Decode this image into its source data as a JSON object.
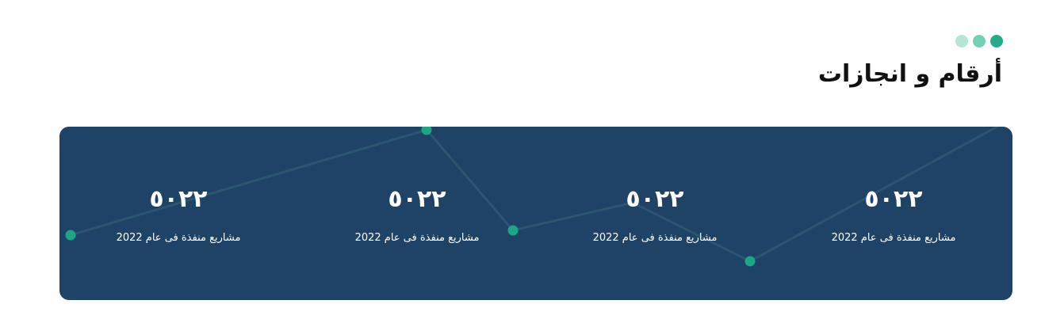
{
  "section": {
    "title": "أرقام و انجازات"
  },
  "colors": {
    "panel_background": "#1f4267",
    "accent": "#1ba684",
    "dot_light": "#b3e6d6",
    "dot_mid": "#74d0b5",
    "dot_dark": "#23ac87",
    "line": "#2b566f"
  },
  "stats": [
    {
      "value": "٥٠٢٢",
      "label": "مشاريع منفذة فى عام 2022"
    },
    {
      "value": "٥٠٢٢",
      "label": "مشاريع منفذة فى عام 2022"
    },
    {
      "value": "٥٠٢٢",
      "label": "مشاريع منفذة فى عام 2022"
    },
    {
      "value": "٥٠٢٢",
      "label": "مشاريع منفذة فى عام 2022"
    }
  ]
}
